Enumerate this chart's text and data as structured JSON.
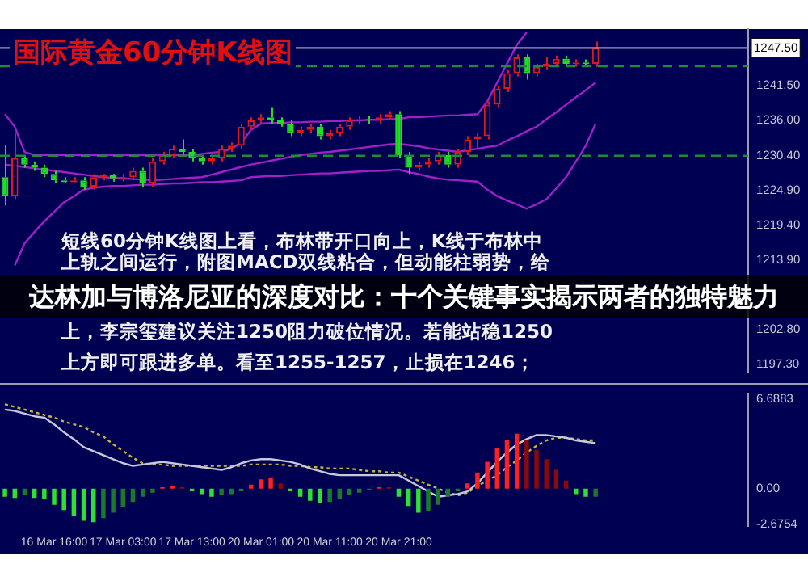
{
  "chart_data": [
    {
      "type": "candlestick",
      "title": "国际黄金60分钟K线图",
      "subtitle": "达林加与博洛尼亚的深度对比：十个关键事实揭示两者的独特魅力",
      "annotations": [
        "短线60分钟K线图上看，布林带开口向上，K线于布林中",
        "上轨之间运行，附图MACD双线粘合，但动能柱弱势，给",
        "上，李宗玺建议关注1250阻力破位情况。若能站稳1250",
        "上方即可跟进多单。看至1255-1257，止损在1246；"
      ],
      "categories": [
        null,
        null,
        null,
        null,
        null,
        null,
        null,
        null,
        null,
        null,
        null,
        null,
        null,
        null,
        null,
        null,
        null,
        null,
        null,
        null,
        null,
        null,
        null,
        null,
        null,
        null,
        null,
        null,
        null,
        null,
        null,
        null,
        null,
        null,
        null,
        null,
        null,
        null,
        null,
        null,
        null,
        null,
        null,
        null,
        null,
        null,
        null,
        null,
        null,
        null,
        null,
        null,
        null,
        null,
        null,
        null,
        null,
        null,
        null,
        null,
        null,
        null,
        null,
        null,
        null,
        null,
        null,
        null,
        null,
        null,
        null,
        null,
        null,
        null,
        null,
        null
      ],
      "ohlc": [
        [
          1227,
          1232,
          1222.5,
          1224
        ],
        [
          1224,
          1234,
          1223.5,
          1230
        ],
        [
          1230,
          1230.5,
          1228.5,
          1229
        ],
        [
          1229,
          1229.5,
          1228,
          1228.5
        ],
        [
          1228.5,
          1229,
          1227,
          1227.5
        ],
        [
          1227.5,
          1228,
          1226,
          1226.5
        ],
        [
          1226.5,
          1227,
          1226,
          1226.2
        ],
        [
          1226.2,
          1227,
          1226,
          1226.5
        ],
        [
          1226.5,
          1227,
          1225,
          1225.5
        ],
        [
          1225.5,
          1227.5,
          1225,
          1227
        ],
        [
          1227,
          1227.5,
          1226.5,
          1227.3
        ],
        [
          1227.3,
          1227.5,
          1226.3,
          1226.8
        ],
        [
          1226.8,
          1227.5,
          1226.3,
          1227
        ],
        [
          1227,
          1228.5,
          1226.5,
          1228
        ],
        [
          1228,
          1228.5,
          1225.5,
          1226
        ],
        [
          1226,
          1230,
          1225.5,
          1229.5
        ],
        [
          1229.5,
          1231,
          1229,
          1230.5
        ],
        [
          1230.5,
          1232,
          1230,
          1231.5
        ],
        [
          1231.5,
          1233,
          1230.5,
          1231
        ],
        [
          1231,
          1231.5,
          1229.5,
          1230
        ],
        [
          1230,
          1230.5,
          1229,
          1229.5
        ],
        [
          1229.5,
          1230.5,
          1229,
          1230
        ],
        [
          1230,
          1232,
          1229.5,
          1231.5
        ],
        [
          1231.5,
          1232.5,
          1231,
          1232
        ],
        [
          1232,
          1235.5,
          1231.5,
          1235
        ],
        [
          1235,
          1236.5,
          1234.5,
          1236
        ],
        [
          1236,
          1237,
          1235.5,
          1236.5
        ],
        [
          1236.5,
          1238,
          1235.5,
          1236
        ],
        [
          1236,
          1236.5,
          1235,
          1235.5
        ],
        [
          1235.5,
          1236,
          1233.5,
          1234
        ],
        [
          1234,
          1235,
          1233.5,
          1234.5
        ],
        [
          1234.5,
          1235.5,
          1234,
          1235
        ],
        [
          1235,
          1235.5,
          1233,
          1233.5
        ],
        [
          1233.5,
          1234.5,
          1233,
          1234
        ],
        [
          1234,
          1235.5,
          1233.5,
          1235
        ],
        [
          1235,
          1236.5,
          1234.5,
          1236
        ],
        [
          1236,
          1236.7,
          1235.5,
          1236.2
        ],
        [
          1236.2,
          1236.7,
          1235.5,
          1236
        ],
        [
          1236,
          1237,
          1235.5,
          1236.5
        ],
        [
          1236.5,
          1237.5,
          1236,
          1237
        ],
        [
          1237,
          1237.5,
          1230,
          1230.5
        ],
        [
          1230.5,
          1231,
          1227.5,
          1228.5
        ],
        [
          1228.5,
          1229.5,
          1228,
          1229
        ],
        [
          1229,
          1230,
          1228.5,
          1229.5
        ],
        [
          1229.5,
          1231,
          1229,
          1230.5
        ],
        [
          1230.5,
          1231,
          1228.5,
          1229
        ],
        [
          1229,
          1231.5,
          1228.5,
          1231
        ],
        [
          1231,
          1233.5,
          1230.5,
          1233
        ],
        [
          1233,
          1234,
          1231.5,
          1233.5
        ],
        [
          1233.5,
          1239,
          1233,
          1238.5
        ],
        [
          1238.5,
          1241.5,
          1238,
          1241
        ],
        [
          1241,
          1244,
          1240.5,
          1243.5
        ],
        [
          1243.5,
          1246.5,
          1243,
          1246
        ],
        [
          1246,
          1246.5,
          1242.5,
          1243.5
        ],
        [
          1243.5,
          1245,
          1243,
          1244.5
        ],
        [
          1244.5,
          1246,
          1244,
          1245
        ],
        [
          1245,
          1246.3,
          1244.5,
          1245.8
        ],
        [
          1245.8,
          1246.3,
          1244.5,
          1245
        ],
        [
          1245,
          1245.7,
          1244.5,
          1245.2
        ],
        [
          1245.2,
          1245.7,
          1244.5,
          1245
        ],
        [
          1245,
          1248.5,
          1244.5,
          1247.5
        ],
        null,
        null,
        null,
        null,
        null,
        null,
        null,
        null,
        null,
        null,
        null,
        null,
        null,
        null,
        null
      ],
      "colors": [
        "#22dd22",
        "#e01818",
        "#22dd22",
        "#22dd22",
        "#22dd22",
        "#22dd22",
        "#22dd22",
        "#e01818",
        "#22dd22",
        "#e01818",
        "#e01818",
        "#22dd22",
        "#e01818",
        "#e01818",
        "#22dd22",
        "#e01818",
        "#e01818",
        "#e01818",
        "#22dd22",
        "#22dd22",
        "#22dd22",
        "#e01818",
        "#e01818",
        "#e01818",
        "#e01818",
        "#e01818",
        "#e01818",
        "#22dd22",
        "#22dd22",
        "#22dd22",
        "#e01818",
        "#e01818",
        "#22dd22",
        "#e01818",
        "#e01818",
        "#e01818",
        "#e01818",
        "#22dd22",
        "#e01818",
        "#e01818",
        "#22dd22",
        "#22dd22",
        "#e01818",
        "#e01818",
        "#e01818",
        "#22dd22",
        "#e01818",
        "#e01818",
        "#e01818",
        "#e01818",
        "#e01818",
        "#e01818",
        "#e01818",
        "#22dd22",
        "#e01818",
        "#e01818",
        "#e01818",
        "#22dd22",
        "#e01818",
        "#22dd22",
        "#e01818",
        null,
        null,
        null,
        null,
        null,
        null,
        null,
        null,
        null,
        null,
        null,
        null,
        null,
        null,
        null
      ],
      "series": [
        {
          "type": "line",
          "color": "#a020c8",
          "values": [
            1237,
            1235,
            1231,
            1230.5,
            1230.5,
            1230.5,
            1230.5,
            1230.5,
            1230.5,
            1230.5,
            1230.5,
            1230.5,
            1230.5,
            1230.5,
            1230.5,
            1230.5,
            1230.5,
            1230.5,
            1230.5,
            1230.5,
            1230.7,
            1230.9,
            1231,
            1231.5,
            1232.5,
            1234.5,
            1235.5,
            1235.6,
            1235.6,
            1235.7,
            1235.7,
            1235.8,
            1235.8,
            1235.9,
            1235.9,
            1236,
            1236,
            1236.1,
            1236.1,
            1236.2,
            1236.2,
            1236.5,
            1236.5,
            1236.6,
            1236.7,
            1236.8,
            1236.8,
            1236.9,
            1237,
            1239,
            1242,
            1245,
            1248,
            1250,
            null,
            null,
            null,
            null,
            null,
            null,
            null,
            null,
            null,
            null,
            null,
            null,
            null,
            null,
            null,
            null,
            null,
            null,
            null,
            null,
            null,
            null
          ]
        },
        {
          "type": "line",
          "color": "#a020c8",
          "values": [
            1229,
            1228.8,
            1228.6,
            1228.4,
            1228.2,
            1228,
            1227.8,
            1227.6,
            1227.4,
            1227.2,
            1227,
            1226.9,
            1226.8,
            1226.7,
            1226.6,
            1226.5,
            1226.6,
            1226.7,
            1226.8,
            1226.9,
            1227,
            1227.4,
            1227.8,
            1228.2,
            1228.6,
            1229,
            1229.3,
            1229.6,
            1229.9,
            1230.2,
            1230.5,
            1230.7,
            1230.9,
            1231,
            1231.2,
            1231.4,
            1231.6,
            1231.8,
            1232,
            1232.2,
            1232.3,
            1232.1,
            1231.9,
            1231.6,
            1231.4,
            1231.2,
            1231,
            1231.3,
            1231.5,
            1231.8,
            1232,
            1232.8,
            1233.5,
            1234.3,
            1235,
            1236.2,
            1237.3,
            1238.5,
            1239.7,
            1240.8,
            1242,
            null,
            null,
            null,
            null,
            null,
            null,
            null,
            null,
            null,
            null,
            null,
            null,
            null,
            null,
            null
          ]
        },
        {
          "type": "line",
          "color": "#a020c8",
          "values": [
            null,
            1213,
            1216.5,
            1218.3,
            1220,
            1221.5,
            1223,
            1224,
            1225,
            1225.3,
            1225.5,
            1225.6,
            1225.6,
            1225.7,
            1225.8,
            1225.8,
            1225.9,
            1226,
            1226,
            1226.1,
            1226.2,
            1226.2,
            1226.3,
            1226.4,
            1226.5,
            1227,
            1227.1,
            1227.2,
            1227.2,
            1227.3,
            1227.4,
            1227.5,
            1227.6,
            1227.6,
            1227.7,
            1227.8,
            1227.9,
            1228,
            1228,
            1228.1,
            1228.2,
            1227.8,
            1227.5,
            1227.1,
            1226.8,
            1226.6,
            1226.5,
            1226.4,
            1226.3,
            1225,
            1224,
            1223.3,
            1222.7,
            1222,
            1222.7,
            1223.5,
            1225.2,
            1227,
            1229.5,
            1232,
            1235.5,
            null,
            null,
            null,
            null,
            null,
            null,
            null,
            null,
            null,
            null,
            null,
            null,
            null,
            null,
            null
          ]
        }
      ],
      "ylim": [
        1196,
        1250.5
      ],
      "yticks": [
        {
          "value": 1197.3,
          "label": "1197.30"
        },
        {
          "value": 1202.8,
          "label": "1202.80"
        },
        {
          "value": 1213.9,
          "label": "1213.90"
        },
        {
          "value": 1219.4,
          "label": "1219.40"
        },
        {
          "value": 1224.9,
          "label": "1224.90"
        },
        {
          "value": 1230.4,
          "label": "1230.40"
        },
        {
          "value": 1236,
          "label": "1236.00"
        },
        {
          "value": 1241.5,
          "label": "1241.50"
        }
      ],
      "ref_lines": [
        {
          "axis": "y",
          "value": 1247.5,
          "label": "1247.50",
          "color": "#9a9ab0"
        },
        {
          "axis": "y",
          "value": 1244.6,
          "color": "#1e8a3c",
          "line_style": "dashed"
        },
        {
          "axis": "y",
          "value": 1230.4,
          "color": "#1e8a3c",
          "line_style": "dashed"
        }
      ],
      "tick_labels": "y"
    },
    {
      "type": "bar",
      "categories": [
        null,
        null,
        null,
        null,
        null,
        "16 Mar 16:00",
        null,
        null,
        null,
        null,
        null,
        null,
        "17 Mar 03:00",
        null,
        null,
        null,
        null,
        null,
        null,
        "17 Mar 13:00",
        null,
        null,
        null,
        null,
        null,
        null,
        "20 Mar 01:00",
        null,
        null,
        null,
        null,
        null,
        null,
        "20 Mar 11:00",
        null,
        null,
        null,
        null,
        null,
        null,
        "20 Mar 21:00",
        null,
        null,
        null,
        null,
        null,
        null,
        null,
        null,
        null,
        null,
        null,
        null,
        null,
        null,
        null,
        null,
        null,
        null,
        null,
        null,
        null,
        null,
        null,
        null,
        null,
        null,
        null,
        null,
        null,
        null,
        null,
        null,
        null,
        null,
        null
      ],
      "series": [
        {
          "type": "bar",
          "values": [
            -0.6,
            -0.7,
            -0.5,
            -0.7,
            -0.8,
            -1.2,
            -1.6,
            -2.0,
            -2.4,
            -2.5,
            -2.2,
            -1.8,
            -1.4,
            -1.0,
            -0.6,
            -0.3,
            0.1,
            0.2,
            0.1,
            -0.2,
            -0.4,
            -0.6,
            -0.5,
            -0.4,
            -0.2,
            0.3,
            0.7,
            0.8,
            0.4,
            -0.2,
            -0.6,
            -0.9,
            -1.1,
            -1.0,
            -0.8,
            -0.5,
            -0.3,
            -0.1,
            0.1,
            0.1,
            -0.6,
            -1.3,
            -1.8,
            -1.7,
            -1.2,
            -0.6,
            -0.2,
            0.4,
            1.2,
            2.0,
            3.0,
            3.6,
            4.1,
            3.6,
            2.9,
            2.2,
            1.4,
            0.6,
            -0.4,
            -0.6,
            -0.6,
            null,
            null,
            null,
            null,
            null,
            null,
            null,
            null,
            null,
            null,
            null,
            null,
            null,
            null,
            null
          ],
          "colors": [
            "#30e030",
            "#30e030",
            "#1a7a2a",
            "#30e030",
            "#30e030",
            "#30e030",
            "#30e030",
            "#30e030",
            "#30e030",
            "#30e030",
            "#1a7a2a",
            "#1a7a2a",
            "#1a7a2a",
            "#1a7a2a",
            "#1a7a2a",
            "#1a7a2a",
            "#ff2020",
            "#ff2020",
            "#8a0a0a",
            "#30e030",
            "#30e030",
            "#30e030",
            "#1a7a2a",
            "#1a7a2a",
            "#1a7a2a",
            "#ff2020",
            "#ff2020",
            "#ff2020",
            "#8a0a0a",
            "#30e030",
            "#30e030",
            "#30e030",
            "#30e030",
            "#1a7a2a",
            "#1a7a2a",
            "#1a7a2a",
            "#1a7a2a",
            "#1a7a2a",
            "#ff2020",
            "#8a0a0a",
            "#30e030",
            "#30e030",
            "#30e030",
            "#1a7a2a",
            "#1a7a2a",
            "#1a7a2a",
            "#1a7a2a",
            "#ff2020",
            "#ff2020",
            "#ff2020",
            "#ff2020",
            "#ff2020",
            "#ff2020",
            "#8a0a0a",
            "#8a0a0a",
            "#8a0a0a",
            "#8a0a0a",
            "#8a0a0a",
            "#30e030",
            "#30e030",
            "#1a7a2a",
            null,
            null,
            null,
            null,
            null,
            null,
            null,
            null,
            null,
            null,
            null,
            null,
            null,
            null,
            null
          ]
        },
        {
          "type": "line",
          "color": "#c8c8dc",
          "values": [
            5.9,
            5.8,
            5.6,
            5.4,
            5.3,
            4.8,
            4.2,
            3.7,
            3.1,
            2.8,
            2.5,
            2.2,
            1.9,
            1.7,
            1.8,
            1.9,
            2.0,
            1.9,
            1.8,
            1.7,
            1.6,
            1.5,
            1.4,
            1.6,
            1.9,
            2.1,
            2.2,
            2.2,
            2.1,
            2.0,
            1.8,
            1.5,
            1.3,
            1.1,
            1.0,
            1.0,
            1.0,
            1.0,
            1.0,
            1.0,
            1.0,
            0.6,
            0.2,
            -0.2,
            -0.6,
            -0.5,
            -0.4,
            -0.2,
            0.4,
            1.2,
            2.0,
            2.7,
            3.3,
            3.7,
            4.0,
            4.0,
            3.9,
            3.8,
            3.6,
            3.5,
            3.4,
            null,
            null,
            null,
            null,
            null,
            null,
            null,
            null,
            null,
            null,
            null,
            null,
            null,
            null,
            null
          ]
        },
        {
          "type": "line",
          "color": "#c8b040",
          "line_style": "dotted",
          "values": [
            6.3,
            6.1,
            5.9,
            5.7,
            5.5,
            5.3,
            5.0,
            4.8,
            4.6,
            4.2,
            3.9,
            3.3,
            2.8,
            2.3,
            1.9,
            1.8,
            1.8,
            1.7,
            1.7,
            1.7,
            1.7,
            1.7,
            1.7,
            1.7,
            1.7,
            1.8,
            1.8,
            1.8,
            1.8,
            1.7,
            1.7,
            1.6,
            1.6,
            1.5,
            1.5,
            1.5,
            1.4,
            1.3,
            1.3,
            1.2,
            1.2,
            0.9,
            0.6,
            0.3,
            0.0,
            -0.3,
            -0.5,
            -0.3,
            0.2,
            0.6,
            1.0,
            1.6,
            2.1,
            2.7,
            3.2,
            3.6,
            3.8,
            3.8,
            3.7,
            3.6,
            3.6,
            null,
            null,
            null,
            null,
            null,
            null,
            null,
            null,
            null,
            null,
            null,
            null,
            null,
            null,
            null
          ]
        }
      ],
      "ylim": [
        -2.8,
        7.1
      ],
      "yticks": [
        {
          "value": 6.6883,
          "label": "6.6883"
        },
        {
          "value": 0,
          "label": "0.00"
        },
        {
          "value": -2.6754,
          "label": "-2.6754"
        }
      ]
    }
  ]
}
